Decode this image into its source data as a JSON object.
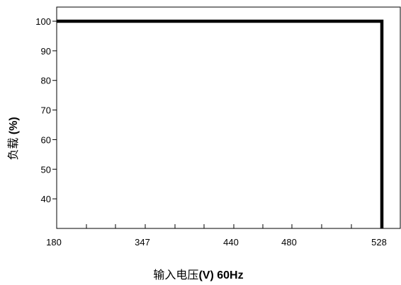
{
  "chart_data": {
    "type": "line",
    "xlabel_prefix": "输入电压",
    "xlabel_bold": "(V) 60Hz",
    "ylabel_prefix": "负载",
    "ylabel_bold": "(%)",
    "x_ticks": [
      180,
      347,
      440,
      480,
      528
    ],
    "y_ticks": [
      40,
      50,
      60,
      70,
      80,
      90,
      100
    ],
    "ylim": [
      30,
      105
    ],
    "series": [
      {
        "x": [
          180,
          528,
          528
        ],
        "y": [
          100,
          100,
          30
        ]
      }
    ],
    "grid": false
  }
}
